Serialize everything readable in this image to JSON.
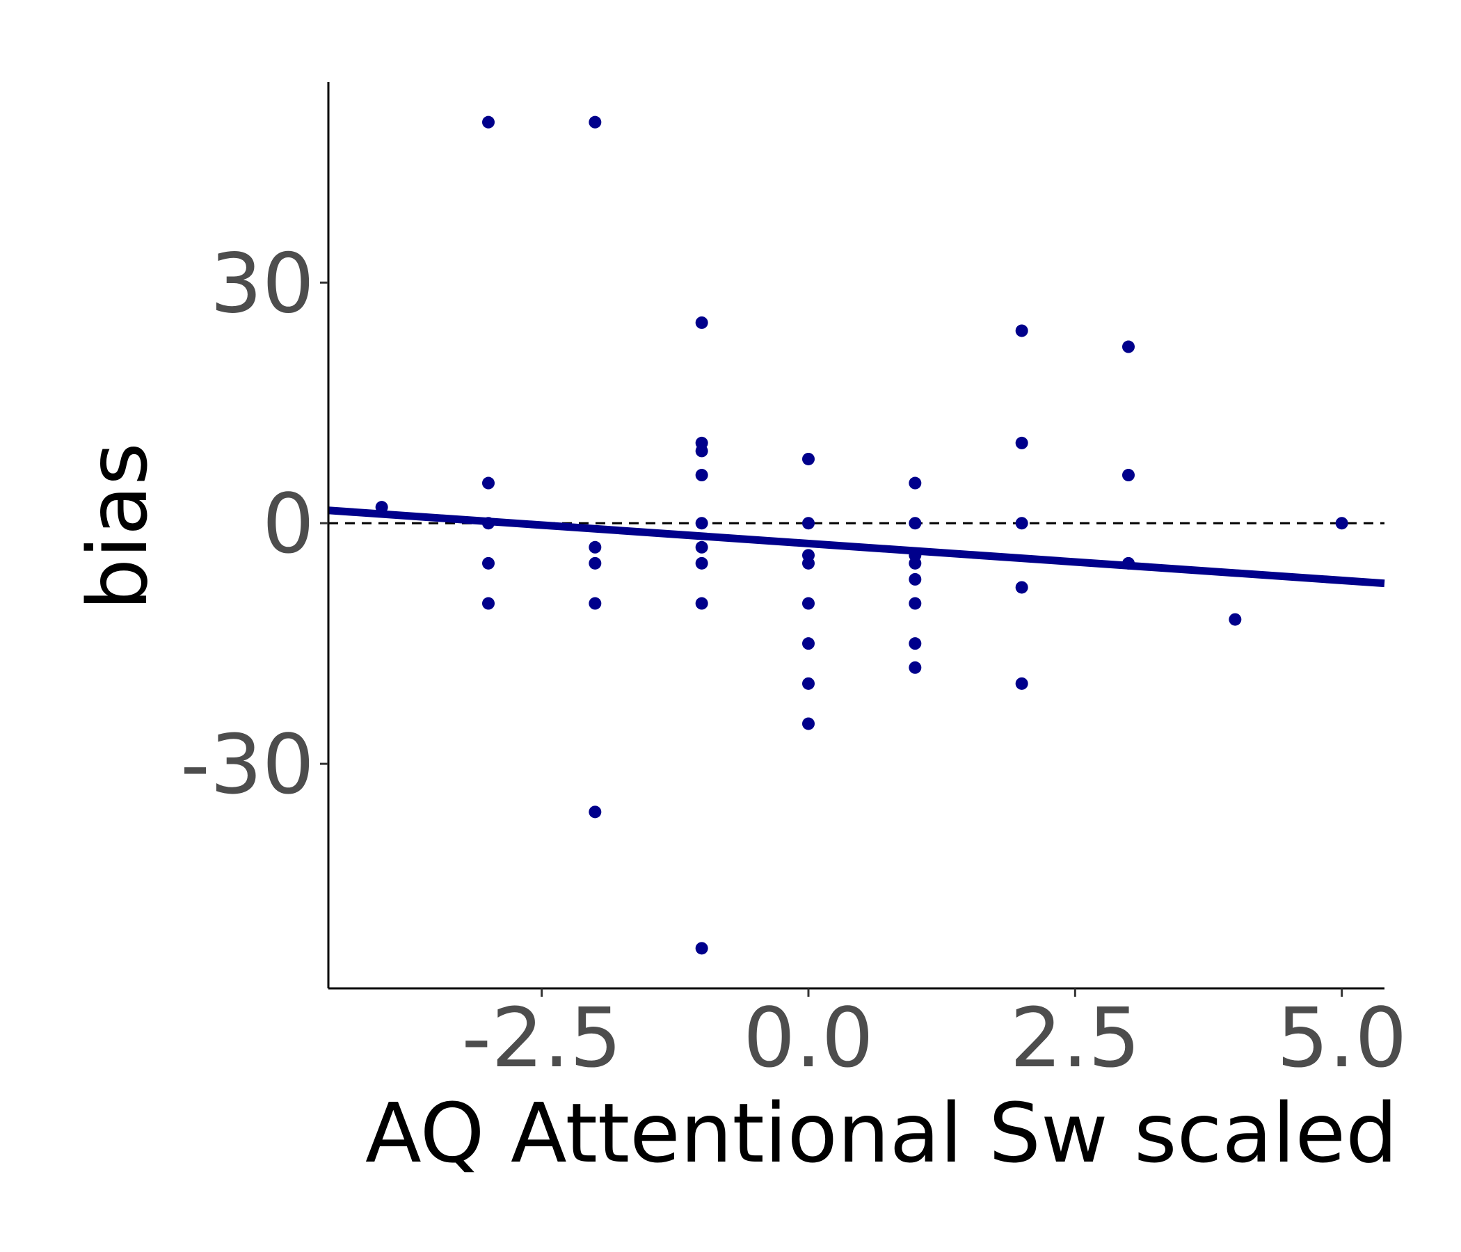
{
  "chart_data": {
    "type": "scatter",
    "title": "",
    "xlabel": "AQ Attentional Sw scaled",
    "ylabel": "bias",
    "xlim": [
      -4.5,
      5.4
    ],
    "ylim": [
      -58,
      55
    ],
    "x_ticks": [
      -2.5,
      0.0,
      2.5,
      5.0
    ],
    "x_tick_labels": [
      "-2.5",
      "0.0",
      "2.5",
      "5.0"
    ],
    "y_ticks": [
      -30,
      0,
      30
    ],
    "y_tick_labels": [
      "-30",
      "0",
      "30"
    ],
    "grid": false,
    "legend": "none",
    "point_color": "#00008B",
    "line_color": "#00008B",
    "reference_line": {
      "y": 0,
      "style": "dashed",
      "color": "#000000"
    },
    "regression_line": {
      "x": [
        -4.5,
        5.4
      ],
      "y": [
        1.6,
        -7.5
      ]
    },
    "points": [
      {
        "x": -4.0,
        "y": 2
      },
      {
        "x": -3.0,
        "y": 50
      },
      {
        "x": -3.0,
        "y": 5
      },
      {
        "x": -3.0,
        "y": 0
      },
      {
        "x": -3.0,
        "y": -5
      },
      {
        "x": -3.0,
        "y": -10
      },
      {
        "x": -2.0,
        "y": 50
      },
      {
        "x": -2.0,
        "y": -3
      },
      {
        "x": -2.0,
        "y": -5
      },
      {
        "x": -2.0,
        "y": -10
      },
      {
        "x": -2.0,
        "y": -36
      },
      {
        "x": -1.0,
        "y": 25
      },
      {
        "x": -1.0,
        "y": 10
      },
      {
        "x": -1.0,
        "y": 9
      },
      {
        "x": -1.0,
        "y": 6
      },
      {
        "x": -1.0,
        "y": 0
      },
      {
        "x": -1.0,
        "y": -3
      },
      {
        "x": -1.0,
        "y": -5
      },
      {
        "x": -1.0,
        "y": -10
      },
      {
        "x": -1.0,
        "y": -53
      },
      {
        "x": 0.0,
        "y": 8
      },
      {
        "x": 0.0,
        "y": 0
      },
      {
        "x": 0.0,
        "y": -4
      },
      {
        "x": 0.0,
        "y": -5
      },
      {
        "x": 0.0,
        "y": -10
      },
      {
        "x": 0.0,
        "y": -15
      },
      {
        "x": 0.0,
        "y": -20
      },
      {
        "x": 0.0,
        "y": -25
      },
      {
        "x": 1.0,
        "y": 5
      },
      {
        "x": 1.0,
        "y": 0
      },
      {
        "x": 1.0,
        "y": -4
      },
      {
        "x": 1.0,
        "y": -5
      },
      {
        "x": 1.0,
        "y": -7
      },
      {
        "x": 1.0,
        "y": -10
      },
      {
        "x": 1.0,
        "y": -15
      },
      {
        "x": 1.0,
        "y": -18
      },
      {
        "x": 2.0,
        "y": 24
      },
      {
        "x": 2.0,
        "y": 10
      },
      {
        "x": 2.0,
        "y": 0
      },
      {
        "x": 2.0,
        "y": -8
      },
      {
        "x": 2.0,
        "y": -20
      },
      {
        "x": 3.0,
        "y": 22
      },
      {
        "x": 3.0,
        "y": 6
      },
      {
        "x": 3.0,
        "y": -5
      },
      {
        "x": 4.0,
        "y": -12
      },
      {
        "x": 5.0,
        "y": 0
      }
    ]
  }
}
